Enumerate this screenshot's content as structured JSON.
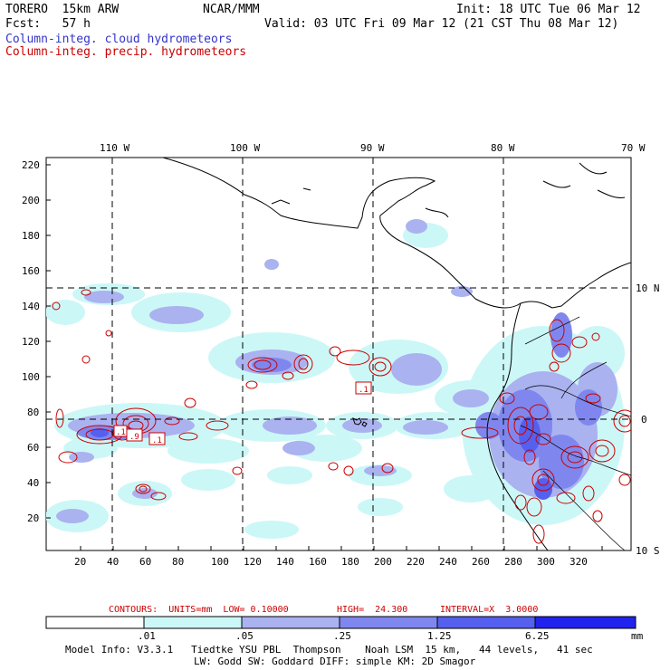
{
  "header": {
    "model": "TORERO  15km ARW",
    "org": "NCAR/MMM",
    "init": "Init: 18 UTC Tue 06 Mar 12",
    "fcst": "Fcst:   57 h",
    "valid": "Valid: 03 UTC Fri 09 Mar 12 (21 CST Thu 08 Mar 12)",
    "legend_cloud": "Column-integ. cloud hydrometeors",
    "legend_precip": "Column-integ. precip. hydrometeors"
  },
  "map": {
    "lon_labels": [
      "110 W",
      "100 W",
      "90 W",
      "80 W",
      "70 W"
    ],
    "lat_labels": [
      "10 N",
      "0",
      "10 S"
    ],
    "y_ticks": [
      "220",
      "200",
      "180",
      "160",
      "140",
      "120",
      "100",
      "80",
      "60",
      "40",
      "20"
    ],
    "x_ticks": [
      "20",
      "40",
      "60",
      "80",
      "100",
      "120",
      "140",
      "160",
      "180",
      "200",
      "220",
      "240",
      "260",
      "280",
      "300",
      "320"
    ],
    "contour_labels": [
      ".1",
      ".9",
      ".1",
      ".1"
    ]
  },
  "contour_info": {
    "contours": "CONTOURS:  UNITS=mm  LOW= 0.10000",
    "high": "HIGH=  24.300",
    "interval": "INTERVAL=X  3.0000"
  },
  "colorbar": {
    "labels": [
      ".01",
      ".05",
      ".25",
      "1.25",
      "6.25"
    ],
    "unit": "mm",
    "colors": [
      "#ffffff",
      "#ccf7f7",
      "#aab2f0",
      "#7f87ee",
      "#5560ee",
      "#2222ee"
    ]
  },
  "footer": {
    "line1": "Model Info: V3.3.1   Tiedtke YSU PBL  Thompson    Noah LSM  15 km,   44 levels,   41 sec",
    "line2": "LW: Godd SW: Goddard DIFF: simple KM: 2D Smagor"
  }
}
